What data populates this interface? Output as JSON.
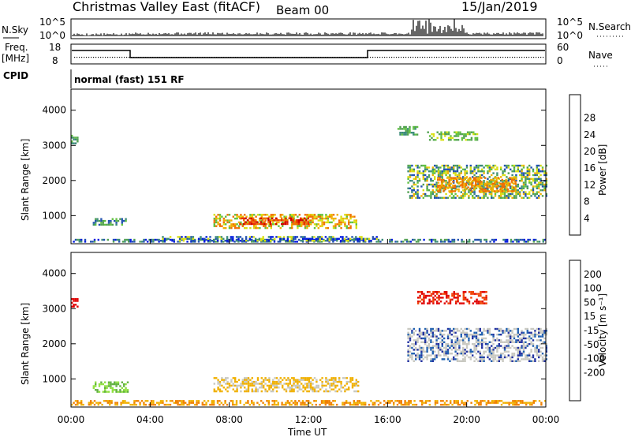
{
  "header": {
    "title": "Christmas Valley East (fitACF)",
    "beam": "Beam 00",
    "date": "15/Jan/2019"
  },
  "sky_panel": {
    "left_label": "N.Sky",
    "right_label": "N.Search",
    "left_ticks": [
      "10^5",
      "10^0"
    ],
    "right_ticks": [
      "10^5",
      "10^0"
    ]
  },
  "freq_panel": {
    "left_label_1": "Freq.",
    "left_label_2": "[MHz]",
    "right_label": "Nave",
    "left_ticks": [
      "18",
      "8"
    ],
    "right_ticks": [
      "60",
      "0"
    ]
  },
  "cpid_panel": {
    "label": "CPID",
    "text": "normal (fast) 151 RF"
  },
  "chart_data": [
    {
      "type": "heatmap",
      "name": "power",
      "ylabel": "Slant Range [km]",
      "yticks": [
        1000,
        2000,
        3000,
        4000
      ],
      "ylim": [
        200,
        4600
      ],
      "xlim": [
        0,
        24
      ],
      "colorbar_label": "Power [dB]",
      "colorbar_ticks": [
        "4",
        "8",
        "12",
        "16",
        "20",
        "24",
        "28"
      ],
      "colors": [
        "#0018e0",
        "#2050b0",
        "#3a8a78",
        "#50a050",
        "#60c040",
        "#d8e010",
        "#f0b000",
        "#f07000",
        "#e83000",
        "#d00000"
      ],
      "regions": [
        {
          "t0": 0.0,
          "t1": 0.3,
          "r0": 3050,
          "r1": 3300,
          "c": [
            2,
            3,
            4
          ]
        },
        {
          "t0": 1.1,
          "t1": 2.8,
          "r0": 720,
          "r1": 930,
          "c": [
            1,
            2,
            3,
            4
          ]
        },
        {
          "t0": 7.2,
          "t1": 14.5,
          "r0": 650,
          "r1": 1050,
          "c": [
            4,
            5,
            6,
            7
          ]
        },
        {
          "t0": 8.5,
          "t1": 12.0,
          "r0": 750,
          "r1": 950,
          "c": [
            7,
            8,
            9
          ]
        },
        {
          "t0": 0.0,
          "t1": 24.0,
          "r0": 240,
          "r1": 340,
          "c": [
            0,
            1,
            2,
            3
          ]
        },
        {
          "t0": 4.5,
          "t1": 15.5,
          "r0": 300,
          "r1": 420,
          "c": [
            0,
            1,
            2,
            5
          ]
        },
        {
          "t0": 17.0,
          "t1": 24.0,
          "r0": 1500,
          "r1": 2450,
          "c": [
            1,
            2,
            3,
            4,
            5,
            6
          ]
        },
        {
          "t0": 18.5,
          "t1": 22.5,
          "r0": 1700,
          "r1": 2100,
          "c": [
            6,
            7
          ]
        },
        {
          "t0": 16.5,
          "t1": 17.5,
          "r0": 3300,
          "r1": 3550,
          "c": [
            2,
            3,
            4
          ]
        },
        {
          "t0": 18.0,
          "t1": 20.5,
          "r0": 3150,
          "r1": 3400,
          "c": [
            3,
            4,
            5
          ]
        }
      ]
    },
    {
      "type": "heatmap",
      "name": "velocity",
      "ylabel": "Slant Range [km]",
      "yticks": [
        1000,
        2000,
        3000,
        4000
      ],
      "ylim": [
        200,
        4600
      ],
      "xlim": [
        0,
        24
      ],
      "xticks": [
        "00:00",
        "04:00",
        "08:00",
        "12:00",
        "16:00",
        "20:00",
        "00:00"
      ],
      "xlabel": "Time UT",
      "colorbar_label": "Velocity [m s⁻¹]",
      "colorbar_ticks": [
        "200",
        "100",
        "50",
        "15",
        "-15",
        "-50",
        "-100",
        "-200"
      ],
      "colors": [
        "#2030a0",
        "#2060b0",
        "#3a8a60",
        "#60b040",
        "#90e040",
        "#c8c8c0",
        "#f0b000",
        "#f08000",
        "#f04000",
        "#e00000"
      ],
      "regions": [
        {
          "t0": 0.0,
          "t1": 0.3,
          "r0": 3050,
          "r1": 3300,
          "c": [
            9
          ]
        },
        {
          "t0": 1.1,
          "t1": 2.9,
          "r0": 650,
          "r1": 930,
          "c": [
            3,
            4
          ]
        },
        {
          "t0": 7.2,
          "t1": 14.5,
          "r0": 650,
          "r1": 1050,
          "c": [
            5,
            6,
            6
          ]
        },
        {
          "t0": 0.0,
          "t1": 24.0,
          "r0": 240,
          "r1": 400,
          "c": [
            6,
            7
          ]
        },
        {
          "t0": 17.0,
          "t1": 24.0,
          "r0": 1500,
          "r1": 2450,
          "c": [
            5,
            5,
            5,
            0,
            1
          ]
        },
        {
          "t0": 17.5,
          "t1": 21.0,
          "r0": 3150,
          "r1": 3500,
          "c": [
            8,
            9
          ]
        }
      ]
    }
  ]
}
